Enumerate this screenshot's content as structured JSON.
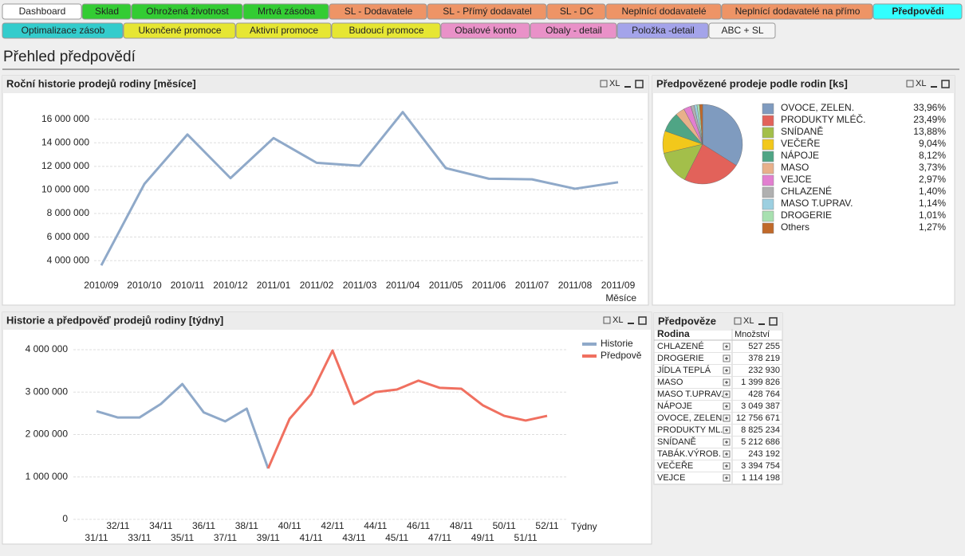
{
  "tabs_row1": [
    "Dashboard",
    "Sklad",
    "Ohrožená životnost",
    "Mrtvá zásoba",
    "SL - Dodavatele",
    "SL - Přímý dodavatel",
    "SL - DC",
    "Neplnící dodavatelé",
    "Neplnící dodavatelé na přímo",
    "Předpovědi"
  ],
  "tabs_row2": [
    "Optimalizace zásob",
    "Ukončené promoce",
    "Aktivní promoce",
    "Budoucí promoce",
    "Obalové konto",
    "Obaly - detail",
    "Položka -detail",
    "ABC + SL"
  ],
  "page_title": "Přehled předpovědí",
  "caption_icon": "XL",
  "chart_data": [
    {
      "type": "line",
      "title": "Roční historie prodejů rodiny [měsíce]",
      "x_label": "Měsíce",
      "categories": [
        "2010/09",
        "2010/10",
        "2010/11",
        "2010/12",
        "2011/01",
        "2011/02",
        "2011/03",
        "2011/04",
        "2011/05",
        "2011/06",
        "2011/07",
        "2011/08",
        "2011/09"
      ],
      "series": [
        {
          "color": "#8fa9c9",
          "values": [
            3600000,
            10500000,
            14700000,
            11000000,
            14400000,
            12300000,
            12050000,
            16600000,
            11850000,
            10950000,
            10900000,
            10100000,
            10650000
          ]
        }
      ],
      "ylim": [
        2800000,
        18000000
      ],
      "yticks": [
        {
          "value": 4000000,
          "label": "4 000 000"
        },
        {
          "value": 6000000,
          "label": "6 000 000"
        },
        {
          "value": 8000000,
          "label": "8 000 000"
        },
        {
          "value": 10000000,
          "label": "10 000 000"
        },
        {
          "value": 12000000,
          "label": "12 000 000"
        },
        {
          "value": 14000000,
          "label": "14 000 000"
        },
        {
          "value": 16000000,
          "label": "16 000 000"
        }
      ],
      "grid": true
    },
    {
      "type": "pie",
      "title": "Předpovězené prodeje podle rodin [ks]",
      "categories": [
        "OVOCE, ZELEN.",
        "PRODUKTY MLÉČ.",
        "SNÍDANĚ",
        "VEČEŘE",
        "NÁPOJE",
        "MASO",
        "VEJCE",
        "CHLAZENÉ",
        "MASO T.UPRAV.",
        "DROGERIE",
        "Others"
      ],
      "values": [
        33.96,
        23.49,
        13.88,
        9.04,
        8.12,
        3.73,
        2.97,
        1.4,
        1.14,
        1.01,
        1.27
      ],
      "value_labels": [
        "33,96%",
        "23,49%",
        "13,88%",
        "9,04%",
        "8,12%",
        "3,73%",
        "2,97%",
        "1,40%",
        "1,14%",
        "1,01%",
        "1,27%"
      ],
      "colors": [
        "#7f9bbf",
        "#e2625a",
        "#a3bf4a",
        "#f2c81b",
        "#4fa585",
        "#e8b08a",
        "#e27fd0",
        "#b0b0b0",
        "#9ccfe0",
        "#a8e0b0",
        "#c0692a"
      ]
    },
    {
      "type": "line",
      "title": "Historie a předpověď prodejů rodiny [týdny]",
      "x_label": "Týdny",
      "legend": "right",
      "categories": [
        "31/11",
        "32/11",
        "33/11",
        "34/11",
        "35/11",
        "36/11",
        "37/11",
        "38/11",
        "39/11",
        "40/11",
        "41/11",
        "42/11",
        "43/11",
        "44/11",
        "45/11",
        "46/11",
        "47/11",
        "48/11",
        "49/11",
        "50/11",
        "51/11",
        "52/11"
      ],
      "series": [
        {
          "name": "Historie",
          "color": "#8fa9c9",
          "values": [
            2550000,
            2400000,
            2400000,
            2720000,
            3190000,
            2520000,
            2310000,
            2610000,
            1200000,
            null,
            null,
            null,
            null,
            null,
            null,
            null,
            null,
            null,
            null,
            null,
            null,
            null
          ]
        },
        {
          "name": "Předpově",
          "color": "#f07060",
          "values": [
            null,
            null,
            null,
            null,
            null,
            null,
            null,
            null,
            1200000,
            2370000,
            2950000,
            3980000,
            2720000,
            3000000,
            3060000,
            3270000,
            3100000,
            3080000,
            2690000,
            2440000,
            2330000,
            2440000
          ]
        }
      ],
      "ylim": [
        0,
        4450000
      ],
      "yticks": [
        0,
        {
          "value": 1000000,
          "label": "1 000 000"
        },
        {
          "value": 2000000,
          "label": "2 000 000"
        },
        {
          "value": 3000000,
          "label": "3 000 000"
        },
        {
          "value": 4000000,
          "label": "4 000 000"
        }
      ],
      "grid": true
    }
  ],
  "table": {
    "title": "Předpověze",
    "columns": [
      "Rodina",
      "Množství"
    ],
    "rows": [
      [
        "CHLAZENÉ",
        "527 255"
      ],
      [
        "DROGERIE",
        "378 219"
      ],
      [
        "JÍDLA TEPLÁ",
        "232 930"
      ],
      [
        "MASO",
        "1 399 826"
      ],
      [
        "MASO T.UPRAV.",
        "428 764"
      ],
      [
        "NÁPOJE",
        "3 049 387"
      ],
      [
        "OVOCE, ZELEN.",
        "12 756 671"
      ],
      [
        "PRODUKTY ML...",
        "8 825 234"
      ],
      [
        "SNÍDANĚ",
        "5 212 686"
      ],
      [
        "TABÁK.VÝROB.",
        "243 192"
      ],
      [
        "VEČEŘE",
        "3 394 754"
      ],
      [
        "VEJCE",
        "1 114 198"
      ]
    ]
  }
}
